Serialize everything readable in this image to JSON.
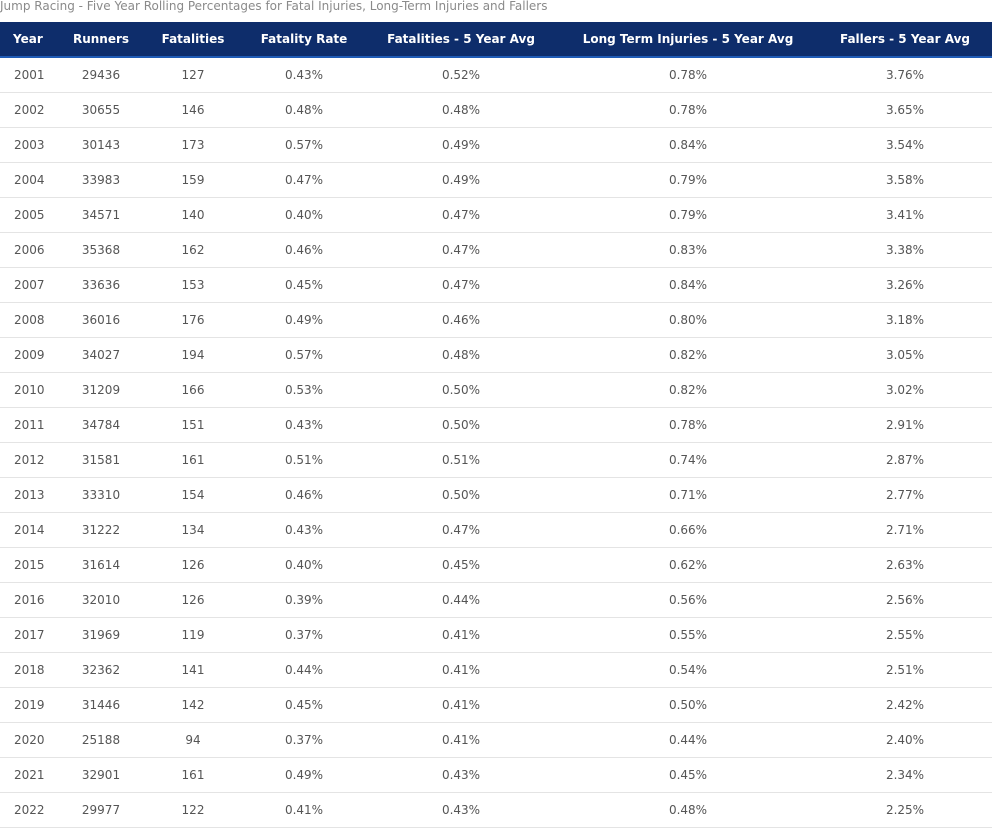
{
  "caption": "Jump Racing - Five Year Rolling Percentages for Fatal Injuries, Long-Term Injuries and Fallers",
  "colors": {
    "header_bg": "#0e2d6b",
    "header_text": "#ffffff",
    "cell_text": "#555555",
    "row_border": "#e4e4e4"
  },
  "table": {
    "headers": [
      "Year",
      "Runners",
      "Fatalities",
      "Fatality Rate",
      "Fatalities - 5 Year Avg",
      "Long Term Injuries - 5 Year Avg",
      "Fallers - 5 Year Avg"
    ],
    "rows": [
      [
        "2001",
        "29436",
        "127",
        "0.43%",
        "0.52%",
        "0.78%",
        "3.76%"
      ],
      [
        "2002",
        "30655",
        "146",
        "0.48%",
        "0.48%",
        "0.78%",
        "3.65%"
      ],
      [
        "2003",
        "30143",
        "173",
        "0.57%",
        "0.49%",
        "0.84%",
        "3.54%"
      ],
      [
        "2004",
        "33983",
        "159",
        "0.47%",
        "0.49%",
        "0.79%",
        "3.58%"
      ],
      [
        "2005",
        "34571",
        "140",
        "0.40%",
        "0.47%",
        "0.79%",
        "3.41%"
      ],
      [
        "2006",
        "35368",
        "162",
        "0.46%",
        "0.47%",
        "0.83%",
        "3.38%"
      ],
      [
        "2007",
        "33636",
        "153",
        "0.45%",
        "0.47%",
        "0.84%",
        "3.26%"
      ],
      [
        "2008",
        "36016",
        "176",
        "0.49%",
        "0.46%",
        "0.80%",
        "3.18%"
      ],
      [
        "2009",
        "34027",
        "194",
        "0.57%",
        "0.48%",
        "0.82%",
        "3.05%"
      ],
      [
        "2010",
        "31209",
        "166",
        "0.53%",
        "0.50%",
        "0.82%",
        "3.02%"
      ],
      [
        "2011",
        "34784",
        "151",
        "0.43%",
        "0.50%",
        "0.78%",
        "2.91%"
      ],
      [
        "2012",
        "31581",
        "161",
        "0.51%",
        "0.51%",
        "0.74%",
        "2.87%"
      ],
      [
        "2013",
        "33310",
        "154",
        "0.46%",
        "0.50%",
        "0.71%",
        "2.77%"
      ],
      [
        "2014",
        "31222",
        "134",
        "0.43%",
        "0.47%",
        "0.66%",
        "2.71%"
      ],
      [
        "2015",
        "31614",
        "126",
        "0.40%",
        "0.45%",
        "0.62%",
        "2.63%"
      ],
      [
        "2016",
        "32010",
        "126",
        "0.39%",
        "0.44%",
        "0.56%",
        "2.56%"
      ],
      [
        "2017",
        "31969",
        "119",
        "0.37%",
        "0.41%",
        "0.55%",
        "2.55%"
      ],
      [
        "2018",
        "32362",
        "141",
        "0.44%",
        "0.41%",
        "0.54%",
        "2.51%"
      ],
      [
        "2019",
        "31446",
        "142",
        "0.45%",
        "0.41%",
        "0.50%",
        "2.42%"
      ],
      [
        "2020",
        "25188",
        "94",
        "0.37%",
        "0.41%",
        "0.44%",
        "2.40%"
      ],
      [
        "2021",
        "32901",
        "161",
        "0.49%",
        "0.43%",
        "0.45%",
        "2.34%"
      ],
      [
        "2022",
        "29977",
        "122",
        "0.41%",
        "0.43%",
        "0.48%",
        "2.25%"
      ]
    ]
  }
}
